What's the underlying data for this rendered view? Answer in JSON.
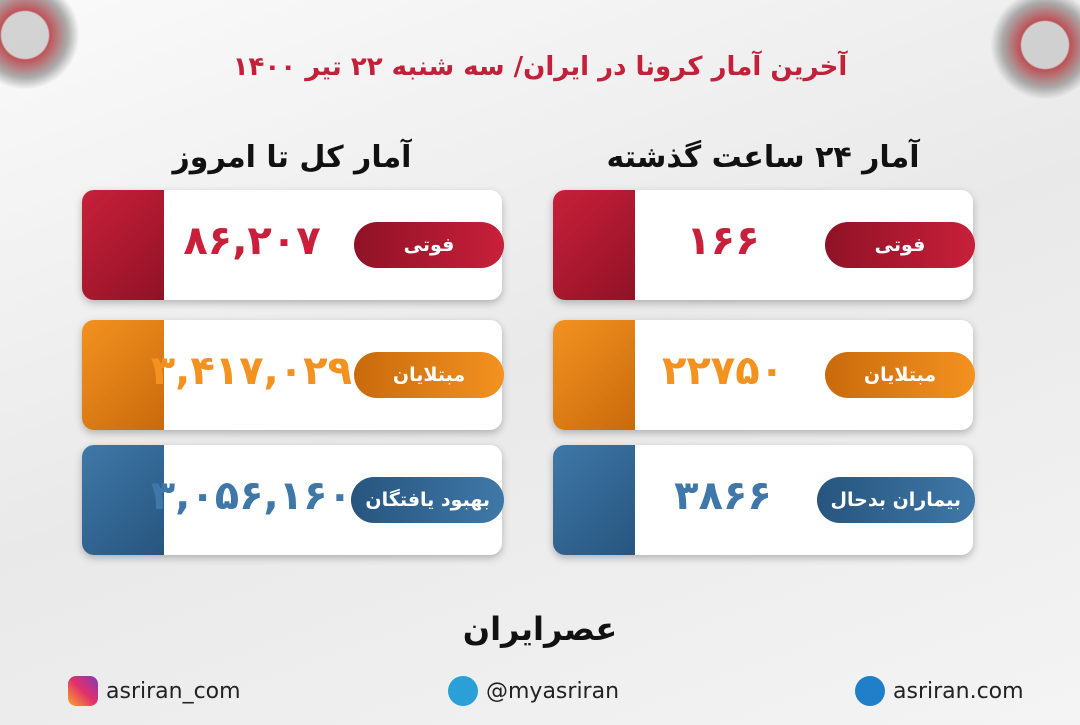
{
  "header": {
    "title": "آخرین آمار کرونا در ایران/ سه شنبه ۲۲ تیر ۱۴۰۰"
  },
  "sections": [
    {
      "heading": "آمار ۲۴ ساعت گذشته",
      "cards": [
        {
          "label": "فوتی",
          "value": "۱۶۶"
        },
        {
          "label": "مبتلایان",
          "value": "۲۲۷۵۰"
        },
        {
          "label": "بیماران بدحال",
          "value": "۳۸۶۶"
        }
      ]
    },
    {
      "heading": "آمار کل تا امروز",
      "cards": [
        {
          "label": "فوتی",
          "value": "۸۶,۲۰۷"
        },
        {
          "label": "مبتلایان",
          "value": "۳,۴۱۷,۰۲۹"
        },
        {
          "label": "بهبود یافتگان",
          "value": "۳,۰۵۶,۱۶۰"
        }
      ]
    }
  ],
  "logo": "عصرایران",
  "footer": {
    "instagram": "asriran_com",
    "telegram": "@myasriran",
    "website": "asriran.com"
  }
}
